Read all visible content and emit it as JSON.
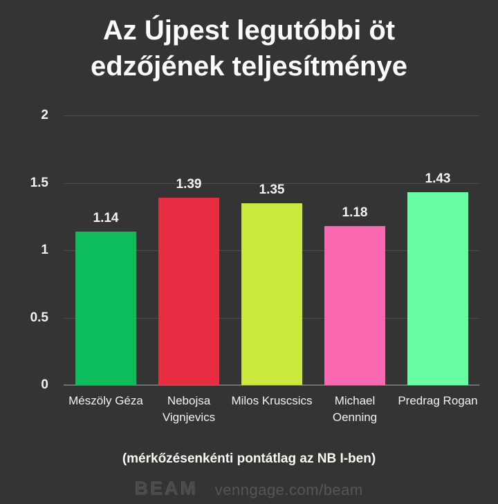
{
  "title": {
    "lines": [
      "Az Újpest legutóbbi öt",
      "edzőjének teljesítménye"
    ]
  },
  "chart_data": {
    "type": "bar",
    "title": "Az Újpest legutóbbi öt edzőjének teljesítménye",
    "categories": [
      "Mészöly Géza",
      "Nebojsa Vignjevics",
      "Milos Kruscsics",
      "Michael Oenning",
      "Predrag Rogan"
    ],
    "values": [
      1.14,
      1.39,
      1.35,
      1.18,
      1.43
    ],
    "value_labels": [
      "1.14",
      "1.39",
      "1.35",
      "1.18",
      "1.43"
    ],
    "bar_colors": [
      "#0dbd5c",
      "#e82c41",
      "#c9e93e",
      "#f968b1",
      "#67fda2"
    ],
    "y_ticks": [
      0,
      0.5,
      1,
      1.5,
      2
    ],
    "y_tick_labels": [
      "0",
      "0.5",
      "1",
      "1.5",
      "2"
    ],
    "ylim": [
      0,
      2
    ],
    "grid": true,
    "legend_position": "none",
    "xlabel": "",
    "ylabel": "",
    "caption": "(mérkőzésenkénti pontátlag az NB I-ben)"
  },
  "footer": {
    "logo_text": "BEAM",
    "link_text": "venngage.com/beam"
  },
  "colors": {
    "background": "#343434",
    "text": "#f2f2f2",
    "gridline": "#4e4e4e",
    "baseline": "#6f6f6f",
    "footer_logo": "#4a4a4a",
    "footer_link": "#565656"
  }
}
